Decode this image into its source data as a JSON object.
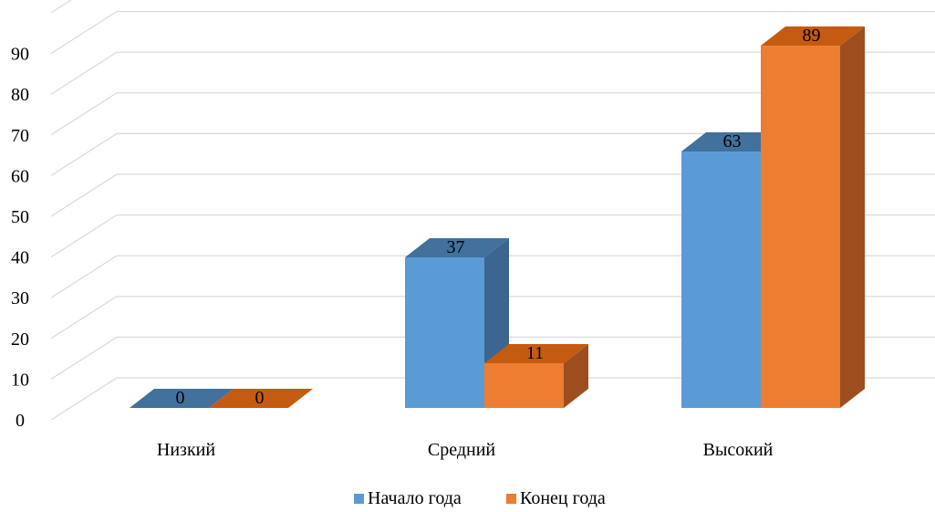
{
  "chart_data": {
    "type": "bar",
    "style": "3d-clustered-column",
    "categories": [
      "Низкий",
      "Средний",
      "Высокий"
    ],
    "series": [
      {
        "name": "Начало года",
        "values": [
          0,
          37,
          63
        ],
        "color": "#5B9BD5",
        "top_color": "#41719C",
        "side_color": "#3A6690"
      },
      {
        "name": "Конец года",
        "values": [
          0,
          11,
          89
        ],
        "color": "#ED7D31",
        "top_color": "#C55A11",
        "side_color": "#9E4E1E"
      }
    ],
    "y_ticks": [
      "0",
      "10",
      "20",
      "30",
      "40",
      "50",
      "60",
      "70",
      "80",
      "90"
    ],
    "ylim": [
      0,
      100
    ],
    "grid": true,
    "legend_position": "bottom",
    "title": "",
    "xlabel": "",
    "ylabel": ""
  }
}
